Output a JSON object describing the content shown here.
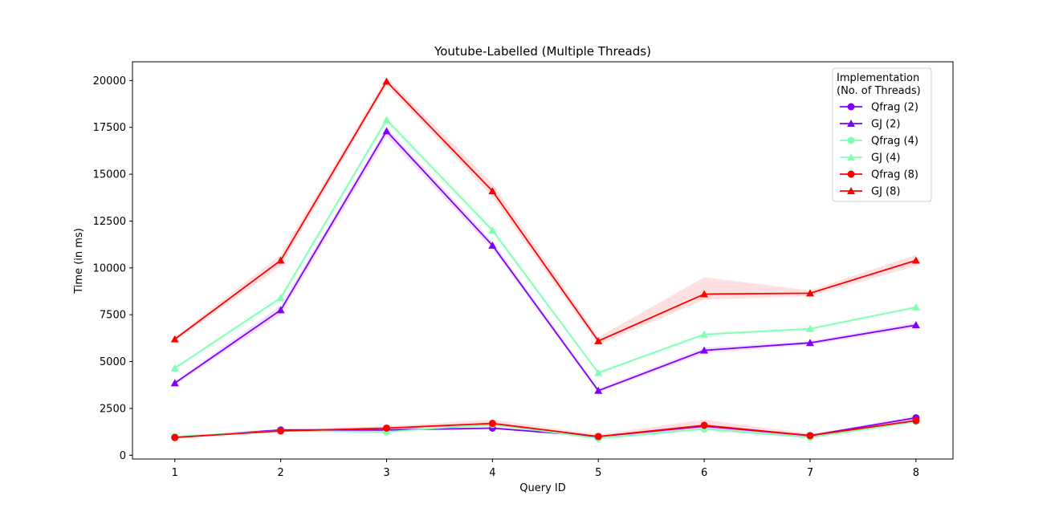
{
  "chart_data": {
    "type": "line",
    "title": "Youtube-Labelled (Multiple Threads)",
    "xlabel": "Query ID",
    "ylabel": "Time (in ms)",
    "x": [
      1,
      2,
      3,
      4,
      5,
      6,
      7,
      8
    ],
    "xlim": [
      0.6,
      8.35
    ],
    "ylim": [
      -200,
      21000
    ],
    "yticks": [
      0,
      2500,
      5000,
      7500,
      10000,
      12500,
      15000,
      17500,
      20000
    ],
    "grid": false,
    "legend": {
      "title_line1": "Implementation",
      "title_line2": "(No. of Threads)",
      "position": "top-right"
    },
    "series": [
      {
        "name": "Qfrag (2)",
        "color": "#8000ff",
        "marker": "circle",
        "values": [
          950,
          1350,
          1350,
          1450,
          1000,
          1550,
          1050,
          2000
        ],
        "band_low": [
          900,
          1300,
          1300,
          1400,
          950,
          1450,
          1000,
          1900
        ],
        "band_high": [
          1000,
          1400,
          1400,
          1500,
          1050,
          1650,
          1100,
          2100
        ]
      },
      {
        "name": "GJ (2)",
        "color": "#8000ff",
        "marker": "triangle",
        "values": [
          3850,
          7750,
          17300,
          11200,
          3450,
          5600,
          6000,
          6950
        ],
        "band_low": [
          3750,
          7500,
          17000,
          11000,
          3350,
          5450,
          5900,
          6800
        ],
        "band_high": [
          3950,
          8000,
          17500,
          11400,
          3550,
          5750,
          6100,
          7100
        ]
      },
      {
        "name": "Qfrag (4)",
        "color": "#80ffb4",
        "marker": "circle",
        "values": [
          1000,
          1300,
          1250,
          1650,
          900,
          1400,
          950,
          1800
        ],
        "band_low": [
          950,
          1250,
          1200,
          1600,
          850,
          1300,
          900,
          1700
        ],
        "band_high": [
          1050,
          1350,
          1300,
          1700,
          950,
          1500,
          1000,
          1900
        ]
      },
      {
        "name": "GJ (4)",
        "color": "#80ffb4",
        "marker": "triangle",
        "values": [
          4650,
          8400,
          17900,
          12000,
          4400,
          6450,
          6750,
          7900
        ],
        "band_low": [
          4550,
          8200,
          17700,
          11800,
          4300,
          6350,
          6650,
          7800
        ],
        "band_high": [
          4750,
          8600,
          18100,
          12200,
          4500,
          6550,
          6850,
          8000
        ]
      },
      {
        "name": "Qfrag (8)",
        "color": "#ff0000",
        "marker": "circle",
        "values": [
          950,
          1300,
          1450,
          1700,
          1000,
          1600,
          1050,
          1850
        ],
        "band_low": [
          900,
          1250,
          1350,
          1550,
          950,
          1400,
          1000,
          1750
        ],
        "band_high": [
          1000,
          1400,
          1550,
          1900,
          1100,
          1900,
          1150,
          1950
        ]
      },
      {
        "name": "GJ (8)",
        "color": "#ff0000",
        "marker": "triangle",
        "values": [
          6200,
          10400,
          19950,
          14100,
          6100,
          8600,
          8650,
          10400
        ],
        "band_low": [
          6100,
          10100,
          19750,
          13800,
          5900,
          8300,
          8500,
          10100
        ],
        "band_high": [
          6300,
          10700,
          20150,
          14500,
          6300,
          9500,
          8800,
          10700
        ]
      }
    ]
  }
}
